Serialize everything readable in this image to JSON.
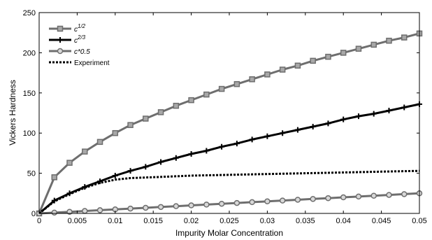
{
  "chart_data": {
    "type": "line",
    "xlabel": "Impurity Molar Concentration",
    "ylabel": "Vickers Hardness",
    "xlim": [
      0,
      0.05
    ],
    "ylim": [
      0,
      250
    ],
    "xticks": [
      "0",
      "0.005",
      "0.01",
      "0.015",
      "0.02",
      "0.025",
      "0.03",
      "0.035",
      "0.04",
      "0.045",
      "0.05"
    ],
    "yticks": [
      "0",
      "50",
      "100",
      "150",
      "200",
      "250"
    ],
    "grid": false,
    "legend_position": "top-left",
    "series": [
      {
        "name": "c^{1/2}",
        "legend_base": "c",
        "legend_sup": "1/2",
        "color": "#6e6e6e",
        "marker": "square",
        "line_style": "solid",
        "x": [
          0,
          0.002,
          0.004,
          0.006,
          0.008,
          0.01,
          0.012,
          0.014,
          0.016,
          0.018,
          0.02,
          0.022,
          0.024,
          0.026,
          0.028,
          0.03,
          0.032,
          0.034,
          0.036,
          0.038,
          0.04,
          0.042,
          0.044,
          0.046,
          0.048,
          0.05
        ],
        "y": [
          0,
          45,
          63,
          77,
          89,
          100,
          110,
          118,
          126,
          134,
          141,
          148,
          155,
          161,
          167,
          173,
          179,
          184,
          190,
          195,
          200,
          205,
          210,
          215,
          219,
          224
        ]
      },
      {
        "name": "c^{2/3}",
        "legend_base": "c",
        "legend_sup": "2/3",
        "color": "#000000",
        "marker": "plus",
        "line_style": "solid",
        "x": [
          0,
          0.002,
          0.004,
          0.006,
          0.008,
          0.01,
          0.012,
          0.014,
          0.016,
          0.018,
          0.02,
          0.022,
          0.024,
          0.026,
          0.028,
          0.03,
          0.032,
          0.034,
          0.036,
          0.038,
          0.04,
          0.042,
          0.044,
          0.046,
          0.048,
          0.05
        ],
        "y": [
          0,
          16,
          25,
          33,
          40,
          47,
          53,
          58,
          64,
          69,
          74,
          78,
          83,
          87,
          92,
          96,
          100,
          104,
          108,
          112,
          117,
          121,
          124,
          128,
          132,
          136
        ]
      },
      {
        "name": "c*0.5",
        "legend_base": "c*0.5",
        "legend_sup": "",
        "color": "#6e6e6e",
        "marker": "circle",
        "line_style": "solid",
        "x": [
          0,
          0.002,
          0.004,
          0.006,
          0.008,
          0.01,
          0.012,
          0.014,
          0.016,
          0.018,
          0.02,
          0.022,
          0.024,
          0.026,
          0.028,
          0.03,
          0.032,
          0.034,
          0.036,
          0.038,
          0.04,
          0.042,
          0.044,
          0.046,
          0.048,
          0.05
        ],
        "y": [
          0,
          1,
          2,
          3,
          4,
          5,
          6,
          7,
          8,
          9,
          10,
          11,
          12,
          13,
          14,
          15,
          16,
          17,
          18,
          19,
          20,
          21,
          22,
          23,
          24,
          25
        ]
      },
      {
        "name": "Experiment",
        "legend_base": "Experiment",
        "legend_sup": "",
        "color": "#000000",
        "marker": "none",
        "line_style": "dotted",
        "x": [
          0,
          0.002,
          0.004,
          0.006,
          0.008,
          0.01,
          0.012,
          0.015,
          0.02,
          0.025,
          0.03,
          0.035,
          0.04,
          0.045,
          0.05
        ],
        "y": [
          0,
          15,
          24,
          32,
          38,
          42,
          44,
          45,
          47,
          48,
          49,
          50,
          51,
          52,
          53
        ]
      }
    ]
  }
}
